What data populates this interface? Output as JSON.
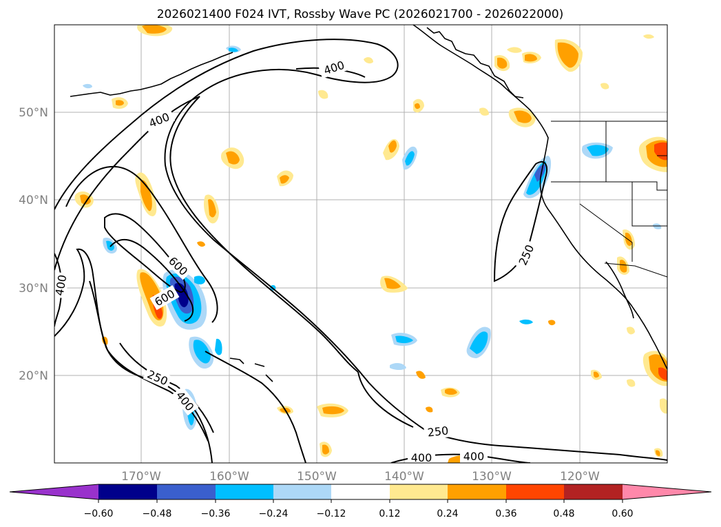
{
  "title": "2026021400 F024 IVT, Rossby Wave PC (2026021700 - 2026022000)",
  "lat_labels": [
    "50°N",
    "40°N",
    "30°N",
    "20°N"
  ],
  "lon_labels": [
    "170°W",
    "160°W",
    "150°W",
    "140°W",
    "130°W",
    "120°W"
  ],
  "contour_labels": [
    "400",
    "400",
    "600",
    "600",
    "400",
    "250",
    "400",
    "250",
    "250",
    "400",
    "400"
  ],
  "colorbar": {
    "colors": [
      "#9932cc",
      "#00008b",
      "#3a5fcd",
      "#00bfff",
      "#add8f7",
      "#ffffff",
      "#ffe990",
      "#ffa000",
      "#ff4500",
      "#b22222",
      "#ff88aa"
    ],
    "ticks": [
      "−0.60",
      "−0.48",
      "−0.36",
      "−0.24",
      "−0.12",
      "0.12",
      "0.24",
      "0.36",
      "0.48",
      "0.60"
    ]
  },
  "anomaly_colors": {
    "pos_light": "#ffe990",
    "pos_mid": "#ffa000",
    "pos_strong": "#ff4500",
    "neg_light": "#add8f7",
    "neg_mid": "#00bfff",
    "neg_strong": "#3a5fcd",
    "neg_extreme": "#00008b"
  }
}
